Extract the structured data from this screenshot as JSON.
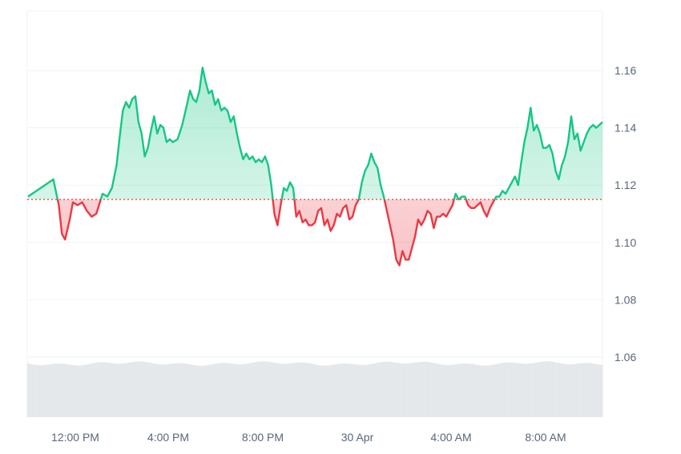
{
  "colors": {
    "up": "#16c784",
    "down": "#ea3943",
    "baseline": "#ea3943",
    "grid": "#eff2f5",
    "volume": "#dee1e6",
    "label": "#58667e"
  },
  "chart_data": {
    "type": "area",
    "title": "",
    "xlabel": "",
    "ylabel": "",
    "baseline_value": 1.115,
    "ylim": [
      1.04,
      1.18
    ],
    "y_ticks": [
      {
        "value": 1.06,
        "label": "1.06"
      },
      {
        "value": 1.08,
        "label": "1.08"
      },
      {
        "value": 1.1,
        "label": "1.10"
      },
      {
        "value": 1.12,
        "label": "1.12"
      },
      {
        "value": 1.14,
        "label": "1.14"
      },
      {
        "value": 1.16,
        "label": "1.16"
      }
    ],
    "x_range_hours": [
      10.9,
      35.9
    ],
    "x_ticks": [
      {
        "hour": 12,
        "label": "12:00 PM"
      },
      {
        "hour": 16,
        "label": "4:00 PM"
      },
      {
        "hour": 20,
        "label": "8:00 PM"
      },
      {
        "hour": 24,
        "label": "30 Apr"
      },
      {
        "hour": 28,
        "label": "4:00 AM"
      },
      {
        "hour": 32,
        "label": "8:00 AM"
      }
    ],
    "grid": true,
    "volume_shown": true,
    "price_series": [
      [
        0.0,
        1.116
      ],
      [
        0.35,
        1.122
      ],
      [
        0.7,
        1.113
      ],
      [
        0.9,
        1.103
      ],
      [
        1.1,
        1.101
      ],
      [
        1.4,
        1.108
      ],
      [
        1.6,
        1.114
      ],
      [
        1.9,
        1.113
      ],
      [
        2.2,
        1.114
      ],
      [
        2.5,
        1.111
      ],
      [
        2.8,
        1.109
      ],
      [
        3.1,
        1.11
      ],
      [
        3.5,
        1.117
      ],
      [
        3.8,
        1.116
      ],
      [
        4.1,
        1.119
      ],
      [
        4.4,
        1.127
      ],
      [
        4.6,
        1.137
      ],
      [
        4.8,
        1.146
      ],
      [
        5.0,
        1.149
      ],
      [
        5.2,
        1.147
      ],
      [
        5.4,
        1.15
      ],
      [
        5.6,
        1.151
      ],
      [
        5.8,
        1.142
      ],
      [
        6.0,
        1.138
      ],
      [
        6.2,
        1.13
      ],
      [
        6.4,
        1.133
      ],
      [
        6.6,
        1.139
      ],
      [
        6.8,
        1.144
      ],
      [
        7.0,
        1.138
      ],
      [
        7.2,
        1.141
      ],
      [
        7.4,
        1.14
      ],
      [
        7.6,
        1.135
      ],
      [
        7.8,
        1.136
      ],
      [
        8.0,
        1.135
      ],
      [
        8.3,
        1.136
      ],
      [
        8.6,
        1.141
      ],
      [
        8.9,
        1.148
      ],
      [
        9.1,
        1.153
      ],
      [
        9.3,
        1.15
      ],
      [
        9.5,
        1.149
      ],
      [
        9.7,
        1.153
      ],
      [
        9.9,
        1.161
      ],
      [
        10.1,
        1.156
      ],
      [
        10.3,
        1.152
      ],
      [
        10.5,
        1.153
      ],
      [
        10.7,
        1.148
      ],
      [
        10.9,
        1.15
      ],
      [
        11.1,
        1.146
      ],
      [
        11.3,
        1.147
      ],
      [
        11.5,
        1.146
      ],
      [
        11.7,
        1.142
      ],
      [
        11.9,
        1.144
      ],
      [
        12.1,
        1.138
      ],
      [
        12.3,
        1.133
      ],
      [
        12.5,
        1.129
      ],
      [
        12.7,
        1.131
      ],
      [
        12.9,
        1.129
      ],
      [
        13.1,
        1.13
      ],
      [
        13.3,
        1.128
      ],
      [
        13.5,
        1.129
      ],
      [
        13.7,
        1.128
      ],
      [
        13.9,
        1.13
      ],
      [
        14.1,
        1.127
      ],
      [
        14.3,
        1.12
      ],
      [
        14.5,
        1.11
      ],
      [
        14.7,
        1.106
      ],
      [
        14.9,
        1.113
      ],
      [
        15.1,
        1.119
      ],
      [
        15.3,
        1.118
      ],
      [
        15.5,
        1.121
      ],
      [
        15.7,
        1.119
      ],
      [
        15.9,
        1.109
      ],
      [
        16.1,
        1.111
      ],
      [
        16.3,
        1.107
      ],
      [
        16.5,
        1.108
      ],
      [
        16.7,
        1.106
      ],
      [
        16.9,
        1.106
      ],
      [
        17.1,
        1.107
      ],
      [
        17.3,
        1.111
      ],
      [
        17.5,
        1.112
      ],
      [
        17.7,
        1.106
      ],
      [
        17.9,
        1.108
      ],
      [
        18.1,
        1.104
      ],
      [
        18.3,
        1.106
      ],
      [
        18.5,
        1.11
      ],
      [
        18.7,
        1.109
      ],
      [
        18.9,
        1.112
      ],
      [
        19.1,
        1.113
      ],
      [
        19.3,
        1.108
      ],
      [
        19.5,
        1.109
      ],
      [
        19.7,
        1.113
      ],
      [
        19.9,
        1.115
      ],
      [
        20.1,
        1.121
      ],
      [
        20.3,
        1.125
      ],
      [
        20.5,
        1.127
      ],
      [
        20.7,
        1.131
      ],
      [
        20.9,
        1.128
      ],
      [
        21.1,
        1.126
      ],
      [
        21.3,
        1.12
      ],
      [
        21.5,
        1.116
      ],
      [
        21.7,
        1.111
      ],
      [
        21.9,
        1.106
      ],
      [
        22.1,
        1.101
      ],
      [
        22.3,
        1.094
      ],
      [
        22.5,
        1.092
      ],
      [
        22.7,
        1.097
      ],
      [
        22.9,
        1.094
      ],
      [
        23.1,
        1.094
      ],
      [
        23.3,
        1.098
      ],
      [
        23.5,
        1.102
      ],
      [
        23.7,
        1.108
      ],
      [
        23.9,
        1.106
      ],
      [
        24.1,
        1.108
      ],
      [
        24.3,
        1.111
      ],
      [
        24.5,
        1.11
      ],
      [
        24.7,
        1.105
      ],
      [
        24.9,
        1.109
      ],
      [
        25.1,
        1.109
      ],
      [
        25.3,
        1.11
      ],
      [
        25.5,
        1.109
      ],
      [
        25.7,
        1.111
      ],
      [
        25.9,
        1.113
      ],
      [
        26.1,
        1.117
      ],
      [
        26.3,
        1.115
      ],
      [
        26.5,
        1.116
      ],
      [
        26.7,
        1.116
      ],
      [
        26.9,
        1.113
      ],
      [
        27.1,
        1.112
      ],
      [
        27.3,
        1.112
      ],
      [
        27.5,
        1.113
      ],
      [
        27.7,
        1.114
      ],
      [
        27.9,
        1.111
      ],
      [
        28.1,
        1.109
      ],
      [
        28.3,
        1.112
      ],
      [
        28.5,
        1.114
      ],
      [
        28.7,
        1.116
      ],
      [
        28.9,
        1.116
      ],
      [
        29.1,
        1.118
      ],
      [
        29.3,
        1.117
      ],
      [
        29.5,
        1.119
      ],
      [
        29.7,
        1.121
      ],
      [
        29.9,
        1.123
      ],
      [
        30.1,
        1.12
      ],
      [
        30.3,
        1.128
      ],
      [
        30.5,
        1.135
      ],
      [
        30.7,
        1.14
      ],
      [
        30.9,
        1.147
      ],
      [
        31.1,
        1.139
      ],
      [
        31.3,
        1.141
      ],
      [
        31.5,
        1.138
      ],
      [
        31.7,
        1.133
      ],
      [
        31.9,
        1.133
      ],
      [
        32.1,
        1.134
      ],
      [
        32.3,
        1.131
      ],
      [
        32.5,
        1.125
      ],
      [
        32.7,
        1.122
      ],
      [
        32.9,
        1.127
      ],
      [
        33.1,
        1.13
      ],
      [
        33.3,
        1.135
      ],
      [
        33.5,
        1.144
      ],
      [
        33.7,
        1.136
      ],
      [
        33.9,
        1.138
      ],
      [
        34.1,
        1.132
      ],
      [
        34.3,
        1.135
      ],
      [
        34.5,
        1.138
      ],
      [
        34.7,
        1.14
      ],
      [
        34.9,
        1.141
      ],
      [
        35.1,
        1.14
      ],
      [
        35.3,
        1.141
      ],
      [
        35.5,
        1.142
      ]
    ]
  }
}
